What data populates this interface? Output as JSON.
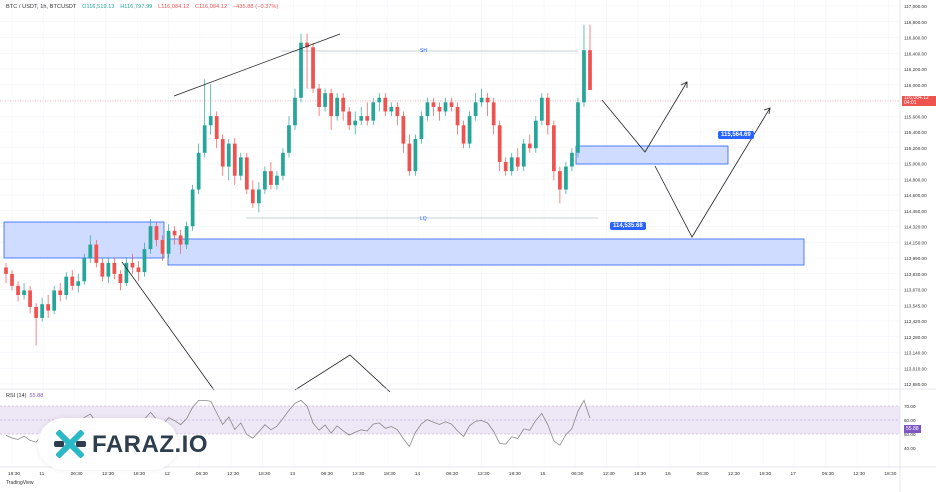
{
  "header": {
    "symbol": "BTC / USDT, 1h, BTCUSDT",
    "open": "O116,519.13",
    "high": "H116,797.99",
    "low": "L116,084.12",
    "close": "C116,084.12",
    "change": "−435.88 (−0.37%)"
  },
  "colors": {
    "up": "#26a69a",
    "down": "#ef5350",
    "zone_fill": "#cfdcff",
    "zone_border": "#2962ff",
    "rsi_line": "#888888",
    "rsi_band": "#ede7f6",
    "tag_bg": "#2962ff"
  },
  "annotations": {
    "sh_label": "SH",
    "lq_label": "LQ",
    "upper_zone_label": "115,564.69",
    "lower_zone_label": "114,535.68"
  },
  "current_price": {
    "value": "116,084.12",
    "countdown": "04:01"
  },
  "rsi": {
    "label": "RSI (14)",
    "value": "55.88",
    "ticks": [
      "70.00",
      "60.00",
      "50.00",
      "40.00"
    ]
  },
  "watermark": {
    "text": "FARAZ.IO"
  },
  "footer": {
    "tradingview": "TradingView"
  },
  "chart_data": {
    "type": "candlestick",
    "price_axis": {
      "ticks": [
        "117,000.00",
        "116,800.00",
        "116,600.00",
        "116,400.00",
        "116,200.00",
        "116,000.00",
        "115,800.00",
        "115,600.00",
        "115,400.00",
        "115,200.00",
        "115,000.00",
        "114,800.00",
        "114,600.00",
        "114,450.00",
        "114,320.00",
        "114,150.00",
        "113,990.00",
        "113,830.00",
        "113,670.00",
        "113,545.00",
        "113,420.00",
        "113,280.00",
        "113,140.00",
        "113,010.00",
        "112,880.00"
      ]
    },
    "time_axis": {
      "ticks": [
        "18:30",
        "11",
        "06:30",
        "12:30",
        "18:30",
        "12",
        "06:30",
        "12:30",
        "18:30",
        "13",
        "06:30",
        "12:30",
        "18:30",
        "14",
        "06:30",
        "12:30",
        "18:30",
        "15",
        "06:30",
        "12:30",
        "18:30",
        "16",
        "06:30",
        "12:30",
        "18:30",
        "17",
        "06:30",
        "12:30",
        "18:30"
      ]
    },
    "candles": [
      [
        114150,
        114080,
        114200,
        113980
      ],
      [
        114080,
        113950,
        114120,
        113900
      ],
      [
        113950,
        113850,
        114000,
        113780
      ],
      [
        113850,
        113900,
        113980,
        113800
      ],
      [
        113900,
        113720,
        113950,
        113650
      ],
      [
        113720,
        113600,
        113760,
        113300
      ],
      [
        113600,
        113750,
        113820,
        113560
      ],
      [
        113750,
        113680,
        113850,
        113600
      ],
      [
        113680,
        113900,
        113950,
        113640
      ],
      [
        113900,
        113850,
        113980,
        113780
      ],
      [
        113850,
        114050,
        114100,
        113800
      ],
      [
        114050,
        113950,
        114120,
        113900
      ],
      [
        113950,
        114000,
        114080,
        113880
      ],
      [
        114000,
        114250,
        114300,
        113960
      ],
      [
        114250,
        114400,
        114500,
        114200
      ],
      [
        114400,
        114200,
        114450,
        114150
      ],
      [
        114200,
        114050,
        114250,
        114000
      ],
      [
        114050,
        114200,
        114260,
        113980
      ],
      [
        114200,
        114080,
        114260,
        114020
      ],
      [
        114080,
        113980,
        114120,
        113900
      ],
      [
        113980,
        114200,
        114260,
        113950
      ],
      [
        114200,
        114150,
        114300,
        114080
      ],
      [
        114150,
        114100,
        114220,
        114000
      ],
      [
        114100,
        114350,
        114420,
        114050
      ],
      [
        114350,
        114600,
        114680,
        114300
      ],
      [
        114600,
        114450,
        114650,
        114380
      ],
      [
        114450,
        114300,
        114500,
        114220
      ],
      [
        114300,
        114550,
        114620,
        114250
      ],
      [
        114550,
        114500,
        114600,
        114400
      ],
      [
        114500,
        114400,
        114560,
        114300
      ],
      [
        114400,
        114600,
        114650,
        114350
      ],
      [
        114600,
        115000,
        115050,
        114550
      ],
      [
        115000,
        115400,
        115500,
        114950
      ],
      [
        115400,
        115700,
        116200,
        115350
      ],
      [
        115700,
        115800,
        116150,
        115600
      ],
      [
        115800,
        115550,
        115850,
        115450
      ],
      [
        115550,
        115250,
        115600,
        115150
      ],
      [
        115250,
        115500,
        115550,
        115100
      ],
      [
        115500,
        115150,
        115560,
        115050
      ],
      [
        115150,
        115350,
        115400,
        115100
      ],
      [
        115350,
        115000,
        115400,
        114950
      ],
      [
        115000,
        114850,
        115100,
        114800
      ],
      [
        114850,
        115000,
        115080,
        114750
      ],
      [
        115000,
        115200,
        115250,
        114950
      ],
      [
        115200,
        115050,
        115300,
        115000
      ],
      [
        115050,
        115150,
        115200,
        115000
      ],
      [
        115150,
        115400,
        115450,
        115100
      ],
      [
        115400,
        115700,
        115800,
        115350
      ],
      [
        115700,
        116000,
        116100,
        115650
      ],
      [
        116000,
        116600,
        116700,
        115950
      ],
      [
        116600,
        116550,
        116700,
        116100
      ],
      [
        116550,
        116100,
        116600,
        116050
      ],
      [
        116100,
        115900,
        116150,
        115800
      ],
      [
        115900,
        116050,
        116100,
        115850
      ],
      [
        116050,
        115800,
        116100,
        115650
      ],
      [
        115800,
        116000,
        116050,
        115750
      ],
      [
        116000,
        115850,
        116050,
        115750
      ],
      [
        115850,
        115700,
        115900,
        115650
      ],
      [
        115700,
        115750,
        115850,
        115600
      ],
      [
        115750,
        115800,
        115900,
        115700
      ],
      [
        115800,
        115750,
        115950,
        115700
      ],
      [
        115750,
        115950,
        116000,
        115700
      ],
      [
        115950,
        116000,
        116050,
        115850
      ],
      [
        116000,
        115850,
        116050,
        115800
      ],
      [
        115850,
        115900,
        115950,
        115800
      ],
      [
        115900,
        115800,
        115950,
        115700
      ],
      [
        115800,
        115500,
        115850,
        115400
      ],
      [
        115500,
        115200,
        115600,
        115150
      ],
      [
        115200,
        115550,
        115600,
        115150
      ],
      [
        115550,
        115800,
        115850,
        115500
      ],
      [
        115800,
        115950,
        116000,
        115750
      ],
      [
        115950,
        115900,
        116000,
        115800
      ],
      [
        115900,
        115850,
        115950,
        115750
      ],
      [
        115850,
        115950,
        116000,
        115800
      ],
      [
        115950,
        115900,
        116000,
        115850
      ],
      [
        115900,
        115700,
        115950,
        115600
      ],
      [
        115700,
        115500,
        115750,
        115450
      ],
      [
        115500,
        115800,
        115850,
        115450
      ],
      [
        115800,
        115950,
        116050,
        115750
      ],
      [
        115950,
        116000,
        116100,
        115900
      ],
      [
        116000,
        115950,
        116050,
        115800
      ],
      [
        115950,
        115700,
        116000,
        115600
      ],
      [
        115700,
        115300,
        115750,
        115200
      ],
      [
        115300,
        115200,
        115350,
        115150
      ],
      [
        115200,
        115350,
        115400,
        115150
      ],
      [
        115350,
        115250,
        115450,
        115200
      ],
      [
        115250,
        115500,
        115550,
        115200
      ],
      [
        115500,
        115450,
        115600,
        115400
      ],
      [
        115450,
        115750,
        115800,
        115400
      ],
      [
        115750,
        116000,
        116050,
        115700
      ],
      [
        116000,
        115700,
        116050,
        115600
      ],
      [
        115700,
        115200,
        115750,
        115100
      ],
      [
        115200,
        115000,
        115250,
        114850
      ],
      [
        115000,
        115250,
        115300,
        114950
      ],
      [
        115250,
        115400,
        115450,
        115200
      ],
      [
        115400,
        115950,
        116000,
        115350
      ],
      [
        115950,
        116519,
        116797,
        115900
      ],
      [
        116519,
        116084,
        116797,
        116084
      ]
    ],
    "zones": [
      {
        "name": "left-demand-zone",
        "from": 114450,
        "to": 114900
      },
      {
        "name": "lower-demand-zone",
        "from": 114150,
        "to": 114500
      },
      {
        "name": "upper-demand-zone",
        "from": 115330,
        "to": 115530
      }
    ]
  }
}
